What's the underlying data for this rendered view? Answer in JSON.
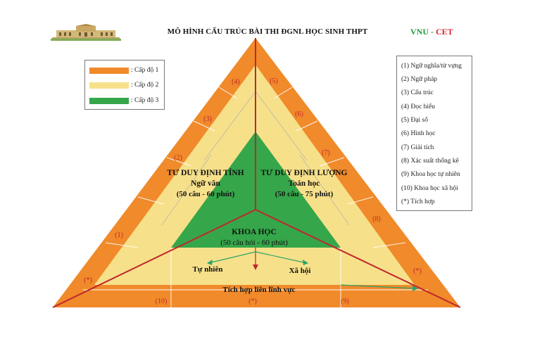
{
  "header": {
    "title": "MÔ HÌNH CẤU TRÚC BÀI THI ĐGNL HỌC SINH THPT",
    "brand_left": "VNU - ",
    "brand_right": "CET"
  },
  "legend": {
    "items": [
      {
        "label": ": Cấp độ 1",
        "color": "#f08a2a"
      },
      {
        "label": ": Cấp độ 2",
        "color": "#f7e08a"
      },
      {
        "label": ": Cấp độ 3",
        "color": "#35a64a"
      }
    ]
  },
  "key": {
    "items": [
      "(1)  Ngữ nghĩa/từ vựng",
      "(2) Ngữ pháp",
      "(3) Cấu trúc",
      "(4) Đọc hiểu",
      "(5) Đại số",
      "(6) Hình học",
      "(7) Giải tích",
      "(8) Xác suất thống kê",
      "(9) Khoa học tự nhiên",
      "(10) Khoa học xã hội",
      "(*)  Tích hợp"
    ]
  },
  "diagram": {
    "left": {
      "title": "TƯ DUY ĐỊNH TÍNH",
      "subject": "Ngữ văn",
      "detail": "(50 câu - 60 phút)"
    },
    "right": {
      "title": "TƯ DUY ĐỊNH LƯỢNG",
      "subject": "Toán học",
      "detail": "(50 câu - 75 phút)"
    },
    "bottom": {
      "title": "KHOA HỌC",
      "detail": "(50 câu hỏi - 60 phút)"
    },
    "branch_left": "Tự nhiên",
    "branch_right": "Xã hội",
    "base_band": "Tích hợp liên lĩnh vực",
    "markers": {
      "left_edge": [
        "(*)",
        "(1)",
        "(2)",
        "(3)",
        "(4)"
      ],
      "right_edge": [
        "(5)",
        "(6)",
        "(7)",
        "(8)",
        "(*)"
      ],
      "base": [
        "(10)",
        "(*)",
        "(9)"
      ]
    },
    "colors": {
      "outer": "#f08a2a",
      "middle": "#f7e08a",
      "inner": "#35a64a",
      "axis": "#c0272d",
      "arrow": "#2aa36b"
    }
  }
}
